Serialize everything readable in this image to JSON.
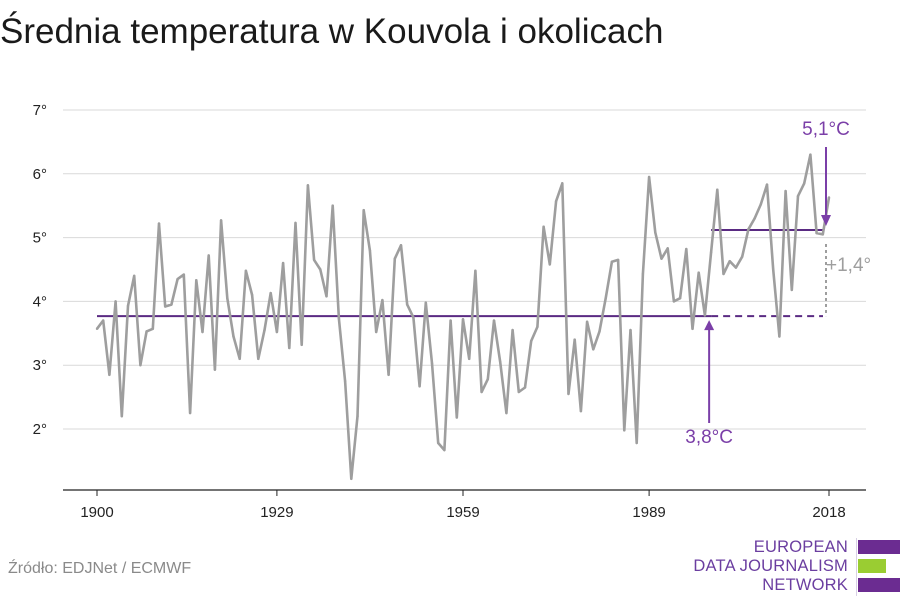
{
  "title": "Średnia temperatura w Kouvola i okolicach",
  "source": "Źródło: EDJNet / ECMWF",
  "logo": {
    "lines": [
      "EUROPEAN",
      "DATA JOURNALISM",
      "NETWORK"
    ],
    "colors": {
      "primary": "#6b2c91",
      "secondary": "#9acd32"
    }
  },
  "colors": {
    "series": "#9e9e9e",
    "reference": "#5a2a82",
    "annotation": "#7b3fa8",
    "difference": "#9e9e9e",
    "grid": "#d9d9d9",
    "axis": "#222222"
  },
  "chart_data": {
    "type": "line",
    "title": "Średnia temperatura w Kouvola i okolicach",
    "xlabel": "",
    "ylabel": "",
    "xlim": [
      1900,
      2018
    ],
    "ylim": [
      1.1,
      7.2
    ],
    "x_ticks": [
      1900,
      1929,
      1959,
      1989,
      2018
    ],
    "x_tick_labels": [
      "1900",
      "1929",
      "1959",
      "1989",
      "2018"
    ],
    "y_ticks": [
      2,
      3,
      4,
      5,
      6,
      7
    ],
    "y_tick_labels": [
      "2°",
      "3°",
      "4°",
      "5°",
      "6°",
      "7°"
    ],
    "grid": true,
    "series": [
      {
        "x": [
          1900,
          1901,
          1902,
          1903,
          1904,
          1905,
          1906,
          1907,
          1908,
          1909,
          1910,
          1911,
          1912,
          1913,
          1914,
          1915,
          1916,
          1917,
          1918,
          1919,
          1920,
          1921,
          1922,
          1923,
          1924,
          1925,
          1926,
          1927,
          1928,
          1929,
          1930,
          1931,
          1932,
          1933,
          1934,
          1935,
          1936,
          1937,
          1938,
          1939,
          1940,
          1941,
          1942,
          1943,
          1944,
          1945,
          1946,
          1947,
          1948,
          1949,
          1950,
          1951,
          1952,
          1953,
          1954,
          1955,
          1956,
          1957,
          1958,
          1959,
          1960,
          1961,
          1962,
          1963,
          1964,
          1965,
          1966,
          1967,
          1968,
          1969,
          1970,
          1971,
          1972,
          1973,
          1974,
          1975,
          1976,
          1977,
          1978,
          1979,
          1980,
          1981,
          1982,
          1983,
          1984,
          1985,
          1986,
          1987,
          1988,
          1989,
          1990,
          1991,
          1992,
          1993,
          1994,
          1995,
          1996,
          1997,
          1998,
          1999,
          2000,
          2001,
          2002,
          2003,
          2004,
          2005,
          2006,
          2007,
          2008,
          2009,
          2010,
          2011,
          2012,
          2013,
          2014,
          2015,
          2016,
          2017,
          2018
        ],
        "values": [
          3.57,
          3.7,
          2.85,
          4.0,
          2.2,
          3.93,
          4.4,
          3.0,
          3.53,
          3.57,
          5.22,
          3.92,
          3.95,
          4.35,
          4.42,
          2.25,
          4.33,
          3.52,
          4.72,
          2.93,
          5.27,
          4.05,
          3.45,
          3.1,
          4.48,
          4.1,
          3.1,
          3.55,
          4.13,
          3.52,
          4.6,
          3.27,
          5.23,
          3.32,
          5.82,
          4.65,
          4.5,
          4.08,
          5.5,
          3.73,
          2.75,
          1.22,
          2.2,
          5.43,
          4.8,
          3.52,
          4.02,
          2.85,
          4.67,
          4.88,
          3.95,
          3.75,
          2.67,
          3.98,
          3.03,
          1.78,
          1.67,
          3.7,
          2.18,
          3.72,
          3.1,
          4.48,
          2.58,
          2.78,
          3.7,
          3.05,
          2.25,
          3.55,
          2.58,
          2.65,
          3.38,
          3.6,
          5.17,
          4.58,
          5.57,
          5.85,
          2.55,
          3.4,
          2.28,
          3.68,
          3.25,
          3.53,
          4.05,
          4.62,
          4.65,
          1.98,
          3.55,
          1.78,
          4.43,
          5.95,
          5.08,
          4.67,
          4.83,
          4.0,
          4.05,
          4.82,
          3.57,
          4.45,
          3.78,
          4.77,
          5.75,
          4.43,
          4.63,
          4.53,
          4.7,
          5.13,
          5.3,
          5.52,
          5.83,
          4.5,
          3.45,
          5.73,
          4.18,
          5.65,
          5.85,
          6.3,
          5.07,
          5.05,
          5.63
        ]
      }
    ],
    "reference_lines": [
      {
        "label": "3,8°C",
        "value": 3.77,
        "x_start": 1900,
        "x_end": 2018,
        "solid_until": 1999
      },
      {
        "label": "5,1°C",
        "value": 5.12,
        "x_start": 1999,
        "x_end": 2018
      }
    ],
    "annotations": {
      "early_label": "3,8°C",
      "late_label": "5,1°C",
      "difference_label": "+1,4°"
    }
  }
}
